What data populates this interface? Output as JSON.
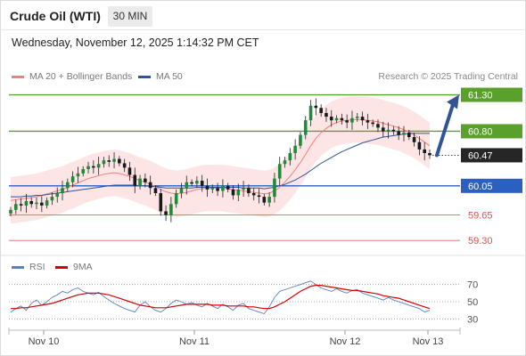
{
  "header": {
    "title": "Crude Oil (WTI)",
    "timeframe": "30 MIN",
    "datetime": "Wednesday, November 12, 2025 1:14:32 PM CET"
  },
  "legend": {
    "items": [
      {
        "label": "MA 20 + Bollinger Bands",
        "color": "#f08080"
      },
      {
        "label": "MA 50",
        "color": "#2f5597"
      }
    ],
    "credit": "Research © 2025 Trading Central"
  },
  "rsi_legend": {
    "items": [
      {
        "label": "RSI",
        "color": "#5b7fc4"
      },
      {
        "label": "9MA",
        "color": "#d40000"
      }
    ]
  },
  "chart_data": [
    {
      "type": "candlestick",
      "title": "Crude Oil (WTI)",
      "ylim": [
        59.18,
        61.38
      ],
      "x_labels": [
        "Nov 10",
        "Nov 11",
        "Nov 12",
        "Nov 13"
      ],
      "last_price": 60.47,
      "levels": [
        {
          "value": 61.3,
          "label": "61.30",
          "kind": "resistance",
          "color": "#5aa02c"
        },
        {
          "value": 60.8,
          "label": "60.80",
          "kind": "resistance",
          "color": "#5aa02c"
        },
        {
          "value": 60.05,
          "label": "60.05",
          "kind": "pivot",
          "color": "#2b5fc0"
        },
        {
          "value": 59.65,
          "label": "59.65",
          "kind": "support",
          "color": "#e06666"
        },
        {
          "value": 59.3,
          "label": "59.30",
          "kind": "support",
          "color": "#e06666"
        }
      ],
      "last_label": "60.47",
      "forecast_arrow": {
        "from": 60.47,
        "to": 61.3
      },
      "closes": [
        59.72,
        59.8,
        59.78,
        59.84,
        59.8,
        59.82,
        59.78,
        59.85,
        59.9,
        59.95,
        60.02,
        60.1,
        60.18,
        60.22,
        60.28,
        60.32,
        60.3,
        60.35,
        60.4,
        60.38,
        60.42,
        60.36,
        60.3,
        60.2,
        60.05,
        60.15,
        60.1,
        60.02,
        59.95,
        59.7,
        59.65,
        59.8,
        59.95,
        60.02,
        60.1,
        60.08,
        60.12,
        60.05,
        60.0,
        60.02,
        59.98,
        60.05,
        60.0,
        59.92,
        60.0,
        60.02,
        59.95,
        59.92,
        59.9,
        59.82,
        59.9,
        60.15,
        60.35,
        60.4,
        60.5,
        60.6,
        60.75,
        60.95,
        61.15,
        61.12,
        61.05,
        61.0,
        60.95,
        60.98,
        60.95,
        60.92,
        60.98,
        61.0,
        60.95,
        60.92,
        60.9,
        60.85,
        60.8,
        60.82,
        60.8,
        60.75,
        60.78,
        60.72,
        60.65,
        60.55,
        60.5,
        60.47
      ],
      "ma20": [
        59.85,
        59.86,
        59.87,
        59.88,
        59.89,
        59.9,
        59.92,
        59.94,
        59.96,
        59.98,
        60.0,
        60.03,
        60.06,
        60.09,
        60.12,
        60.15,
        60.17,
        60.19,
        60.21,
        60.22,
        60.23,
        60.22,
        60.2,
        60.18,
        60.15,
        60.12,
        60.1,
        60.07,
        60.04,
        60.0,
        59.97,
        59.95,
        59.94,
        59.95,
        59.96,
        59.98,
        60.0,
        60.01,
        60.02,
        60.02,
        60.02,
        60.02,
        60.01,
        60.0,
        59.99,
        59.98,
        59.97,
        59.96,
        59.95,
        59.94,
        59.95,
        59.98,
        60.03,
        60.1,
        60.18,
        60.27,
        60.37,
        60.48,
        60.6,
        60.7,
        60.78,
        60.84,
        60.89,
        60.92,
        60.94,
        60.95,
        60.96,
        60.96,
        60.96,
        60.95,
        60.94,
        60.93,
        60.91,
        60.89,
        60.87,
        60.85,
        60.82,
        60.79,
        60.75,
        60.7,
        60.65,
        60.6
      ],
      "ma50": [
        59.9,
        59.9,
        59.9,
        59.91,
        59.91,
        59.92,
        59.92,
        59.93,
        59.94,
        59.95,
        59.96,
        59.97,
        59.98,
        59.99,
        60.0,
        60.01,
        60.02,
        60.03,
        60.04,
        60.05,
        60.06,
        60.06,
        60.06,
        60.06,
        60.06,
        60.05,
        60.05,
        60.04,
        60.04,
        60.03,
        60.02,
        60.02,
        60.02,
        60.02,
        60.02,
        60.02,
        60.03,
        60.03,
        60.03,
        60.03,
        60.03,
        60.03,
        60.03,
        60.03,
        60.03,
        60.02,
        60.02,
        60.02,
        60.02,
        60.01,
        60.02,
        60.03,
        60.05,
        60.07,
        60.1,
        60.13,
        60.17,
        60.21,
        60.26,
        60.31,
        60.36,
        60.4,
        60.44,
        60.48,
        60.52,
        60.55,
        60.58,
        60.61,
        60.64,
        60.66,
        60.68,
        60.7,
        60.72,
        60.73,
        60.74,
        60.75,
        60.76,
        60.77,
        60.77,
        60.77,
        60.77,
        60.77
      ],
      "bb_band": 0.32
    },
    {
      "type": "line",
      "title": "RSI",
      "ylim": [
        20,
        80
      ],
      "yticks": [
        70,
        50,
        30
      ],
      "series": [
        {
          "name": "RSI",
          "color": "#5b7fc4",
          "values": [
            38,
            42,
            45,
            40,
            48,
            52,
            46,
            50,
            55,
            58,
            62,
            60,
            64,
            66,
            62,
            60,
            58,
            61,
            56,
            52,
            48,
            45,
            42,
            40,
            38,
            46,
            50,
            44,
            40,
            38,
            42,
            48,
            52,
            50,
            47,
            49,
            46,
            44,
            48,
            45,
            42,
            47,
            44,
            40,
            46,
            48,
            42,
            40,
            38,
            36,
            44,
            55,
            62,
            64,
            66,
            68,
            70,
            72,
            74,
            70,
            66,
            64,
            62,
            65,
            62,
            60,
            63,
            64,
            60,
            58,
            56,
            54,
            52,
            55,
            52,
            50,
            48,
            46,
            44,
            42,
            38,
            40
          ]
        },
        {
          "name": "9MA",
          "color": "#d40000",
          "values": [
            42,
            42,
            43,
            43,
            44,
            45,
            46,
            47,
            48,
            50,
            52,
            54,
            56,
            58,
            59,
            60,
            60,
            60,
            59,
            58,
            56,
            54,
            52,
            50,
            48,
            46,
            45,
            44,
            43,
            43,
            43,
            44,
            45,
            46,
            47,
            47,
            47,
            47,
            47,
            46,
            46,
            46,
            45,
            45,
            45,
            45,
            44,
            44,
            43,
            42,
            42,
            44,
            47,
            50,
            54,
            58,
            62,
            65,
            68,
            69,
            69,
            68,
            67,
            66,
            65,
            64,
            63,
            63,
            62,
            61,
            60,
            59,
            57,
            56,
            55,
            54,
            52,
            50,
            48,
            46,
            44,
            42
          ]
        }
      ]
    }
  ]
}
